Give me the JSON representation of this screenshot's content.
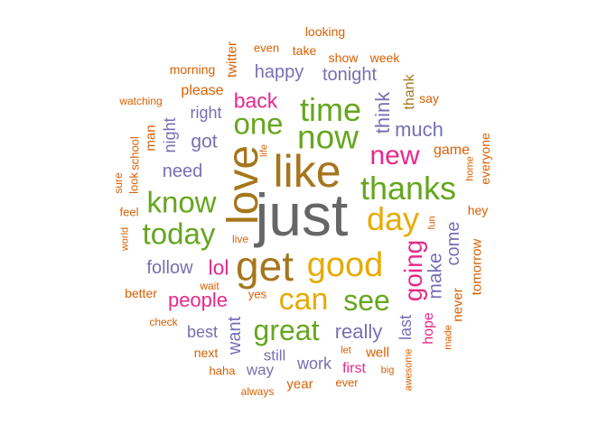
{
  "colors": {
    "teal": "#1b9e77",
    "orange": "#d95f02",
    "purple": "#7570b3",
    "pink": "#e7298a",
    "green": "#66a61e",
    "yellow": "#e6ab02",
    "brown": "#a6761d",
    "gray": "#666666"
  },
  "words": [
    {
      "text": "just",
      "color": "gray",
      "weight": 100,
      "vertical": false
    },
    {
      "text": "like",
      "color": "brown",
      "weight": 80,
      "vertical": false
    },
    {
      "text": "love",
      "color": "brown",
      "weight": 78,
      "vertical": true
    },
    {
      "text": "get",
      "color": "brown",
      "weight": 70,
      "vertical": false
    },
    {
      "text": "good",
      "color": "yellow",
      "weight": 62,
      "vertical": false
    },
    {
      "text": "now",
      "color": "green",
      "weight": 60,
      "vertical": false
    },
    {
      "text": "time",
      "color": "green",
      "weight": 56,
      "vertical": false
    },
    {
      "text": "day",
      "color": "yellow",
      "weight": 56,
      "vertical": false
    },
    {
      "text": "thanks",
      "color": "green",
      "weight": 54,
      "vertical": false
    },
    {
      "text": "can",
      "color": "yellow",
      "weight": 52,
      "vertical": false
    },
    {
      "text": "one",
      "color": "green",
      "weight": 50,
      "vertical": false
    },
    {
      "text": "know",
      "color": "green",
      "weight": 50,
      "vertical": false
    },
    {
      "text": "today",
      "color": "green",
      "weight": 50,
      "vertical": false
    },
    {
      "text": "see",
      "color": "green",
      "weight": 48,
      "vertical": false
    },
    {
      "text": "great",
      "color": "green",
      "weight": 48,
      "vertical": false
    },
    {
      "text": "new",
      "color": "pink",
      "weight": 46,
      "vertical": false
    },
    {
      "text": "going",
      "color": "pink",
      "weight": 44,
      "vertical": true
    },
    {
      "text": "back",
      "color": "pink",
      "weight": 36,
      "vertical": false
    },
    {
      "text": "lol",
      "color": "pink",
      "weight": 36,
      "vertical": false
    },
    {
      "text": "think",
      "color": "purple",
      "weight": 34,
      "vertical": true
    },
    {
      "text": "really",
      "color": "purple",
      "weight": 34,
      "vertical": false
    },
    {
      "text": "people",
      "color": "pink",
      "weight": 32,
      "vertical": false
    },
    {
      "text": "much",
      "color": "purple",
      "weight": 32,
      "vertical": false
    },
    {
      "text": "make",
      "color": "purple",
      "weight": 32,
      "vertical": true
    },
    {
      "text": "want",
      "color": "purple",
      "weight": 30,
      "vertical": true
    },
    {
      "text": "got",
      "color": "purple",
      "weight": 30,
      "vertical": false
    },
    {
      "text": "need",
      "color": "purple",
      "weight": 30,
      "vertical": false
    },
    {
      "text": "come",
      "color": "purple",
      "weight": 30,
      "vertical": true
    },
    {
      "text": "happy",
      "color": "purple",
      "weight": 28,
      "vertical": false
    },
    {
      "text": "tonight",
      "color": "purple",
      "weight": 28,
      "vertical": false
    },
    {
      "text": "follow",
      "color": "purple",
      "weight": 28,
      "vertical": false
    },
    {
      "text": "night",
      "color": "purple",
      "weight": 26,
      "vertical": true
    },
    {
      "text": "right",
      "color": "purple",
      "weight": 26,
      "vertical": false
    },
    {
      "text": "work",
      "color": "purple",
      "weight": 26,
      "vertical": false
    },
    {
      "text": "last",
      "color": "purple",
      "weight": 26,
      "vertical": true
    },
    {
      "text": "still",
      "color": "purple",
      "weight": 26,
      "vertical": false
    },
    {
      "text": "best",
      "color": "purple",
      "weight": 26,
      "vertical": false
    },
    {
      "text": "way",
      "color": "purple",
      "weight": 26,
      "vertical": false
    },
    {
      "text": "first",
      "color": "pink",
      "weight": 24,
      "vertical": false
    },
    {
      "text": "hope",
      "color": "pink",
      "weight": 24,
      "vertical": true
    },
    {
      "text": "thank",
      "color": "brown",
      "weight": 24,
      "vertical": true
    },
    {
      "text": "please",
      "color": "orange",
      "weight": 22,
      "vertical": false
    },
    {
      "text": "game",
      "color": "orange",
      "weight": 22,
      "vertical": false
    },
    {
      "text": "twitter",
      "color": "orange",
      "weight": 22,
      "vertical": true
    },
    {
      "text": "tomorrow",
      "color": "orange",
      "weight": 22,
      "vertical": true
    },
    {
      "text": "never",
      "color": "orange",
      "weight": 22,
      "vertical": true
    },
    {
      "text": "man",
      "color": "orange",
      "weight": 22,
      "vertical": true
    },
    {
      "text": "everyone",
      "color": "orange",
      "weight": 20,
      "vertical": true
    },
    {
      "text": "well",
      "color": "orange",
      "weight": 20,
      "vertical": false
    },
    {
      "text": "year",
      "color": "orange",
      "weight": 20,
      "vertical": false
    },
    {
      "text": "say",
      "color": "orange",
      "weight": 20,
      "vertical": false
    },
    {
      "text": "hey",
      "color": "orange",
      "weight": 20,
      "vertical": false
    },
    {
      "text": "better",
      "color": "orange",
      "weight": 20,
      "vertical": false
    },
    {
      "text": "yes",
      "color": "orange",
      "weight": 18,
      "vertical": false
    },
    {
      "text": "next",
      "color": "orange",
      "weight": 18,
      "vertical": false
    },
    {
      "text": "haha",
      "color": "orange",
      "weight": 18,
      "vertical": false
    },
    {
      "text": "take",
      "color": "orange",
      "weight": 18,
      "vertical": false
    },
    {
      "text": "show",
      "color": "orange",
      "weight": 18,
      "vertical": false
    },
    {
      "text": "week",
      "color": "orange",
      "weight": 18,
      "vertical": false
    },
    {
      "text": "morning",
      "color": "orange",
      "weight": 18,
      "vertical": false
    },
    {
      "text": "even",
      "color": "orange",
      "weight": 18,
      "vertical": false
    },
    {
      "text": "ever",
      "color": "orange",
      "weight": 18,
      "vertical": false
    },
    {
      "text": "looking",
      "color": "orange",
      "weight": 18,
      "vertical": false
    },
    {
      "text": "school",
      "color": "orange",
      "weight": 18,
      "vertical": true
    },
    {
      "text": "look",
      "color": "orange",
      "weight": 16,
      "vertical": true
    },
    {
      "text": "watching",
      "color": "orange",
      "weight": 16,
      "vertical": false
    },
    {
      "text": "feel",
      "color": "orange",
      "weight": 16,
      "vertical": false
    },
    {
      "text": "sure",
      "color": "orange",
      "weight": 16,
      "vertical": true
    },
    {
      "text": "world",
      "color": "orange",
      "weight": 14,
      "vertical": true
    },
    {
      "text": "check",
      "color": "orange",
      "weight": 16,
      "vertical": false
    },
    {
      "text": "wait",
      "color": "orange",
      "weight": 16,
      "vertical": false
    },
    {
      "text": "live",
      "color": "orange",
      "weight": 16,
      "vertical": false
    },
    {
      "text": "always",
      "color": "orange",
      "weight": 16,
      "vertical": false
    },
    {
      "text": "let",
      "color": "orange",
      "weight": 14,
      "vertical": false
    },
    {
      "text": "big",
      "color": "orange",
      "weight": 14,
      "vertical": false
    },
    {
      "text": "home",
      "color": "orange",
      "weight": 14,
      "vertical": true
    },
    {
      "text": "fun",
      "color": "orange",
      "weight": 14,
      "vertical": true
    },
    {
      "text": "life",
      "color": "orange",
      "weight": 14,
      "vertical": true
    },
    {
      "text": "made",
      "color": "orange",
      "weight": 14,
      "vertical": true
    },
    {
      "text": "awesome",
      "color": "orange",
      "weight": 14,
      "vertical": true
    }
  ]
}
